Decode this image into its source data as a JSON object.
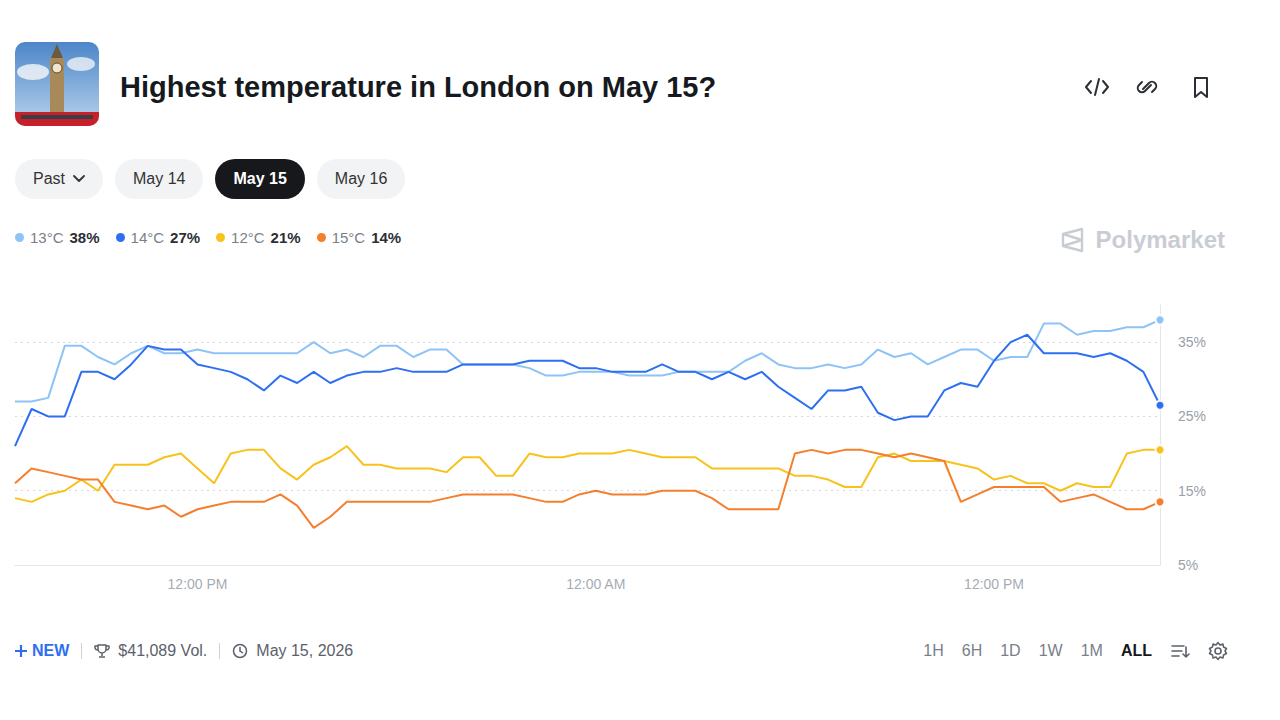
{
  "header": {
    "title": "Highest temperature in London on May 15?",
    "tabs": [
      "Past",
      "May 14",
      "May 15",
      "May 16"
    ],
    "active_tab": "May 15",
    "watermark": "Polymarket"
  },
  "chart_data": {
    "type": "line",
    "x": [
      6.5,
      7,
      7.5,
      8,
      8.5,
      9,
      9.5,
      10,
      10.5,
      11,
      11.5,
      12,
      12.5,
      13,
      13.5,
      14,
      14.5,
      15,
      15.5,
      16,
      16.5,
      17,
      17.5,
      18,
      18.5,
      19,
      19.5,
      20,
      20.5,
      21,
      21.5,
      22,
      22.5,
      23,
      23.5,
      24,
      24.5,
      25,
      25.5,
      26,
      26.5,
      27,
      27.5,
      28,
      28.5,
      29,
      29.5,
      30,
      30.5,
      31,
      31.5,
      32,
      32.5,
      33,
      33.5,
      34,
      34.5,
      35,
      35.5,
      36,
      36.5,
      37,
      37.5,
      38,
      38.5,
      39,
      39.5,
      40,
      40.5,
      41
    ],
    "xlim": [
      6.5,
      41
    ],
    "xticks": [
      {
        "value": 12,
        "label": "12:00 PM"
      },
      {
        "value": 24,
        "label": "12:00 AM"
      },
      {
        "value": 36,
        "label": "12:00 PM"
      }
    ],
    "ylim": [
      5,
      40
    ],
    "yticks": [
      {
        "value": 5,
        "label": "5%"
      },
      {
        "value": 15,
        "label": "15%"
      },
      {
        "value": 25,
        "label": "25%"
      },
      {
        "value": 35,
        "label": "35%"
      }
    ],
    "grid": true,
    "legend": "top-left",
    "series": [
      {
        "name": "13°C",
        "color": "#8ec3f7",
        "chance": {
          "value": 38,
          "label": "38%"
        },
        "values": [
          27,
          27,
          27.5,
          34.5,
          34.5,
          33,
          32,
          33.5,
          34.5,
          33.5,
          33.5,
          34,
          33.5,
          33.5,
          33.5,
          33.5,
          33.5,
          33.5,
          35,
          33.5,
          34,
          33,
          34.5,
          34.5,
          33,
          34,
          34,
          32,
          32,
          32,
          32,
          31.5,
          30.5,
          30.5,
          31,
          31,
          31,
          30.5,
          30.5,
          30.5,
          31,
          31,
          31,
          31,
          32.5,
          33.5,
          32,
          31.5,
          31.5,
          32,
          31.5,
          32,
          34,
          33,
          33.5,
          32,
          33,
          34,
          34,
          32.5,
          33,
          33,
          37.5,
          37.5,
          36,
          36.5,
          36.5,
          37,
          37,
          38
        ]
      },
      {
        "name": "14°C",
        "color": "#2e6ff2",
        "chance": {
          "value": 27,
          "label": "27%"
        },
        "values": [
          21,
          26,
          25,
          25,
          31,
          31,
          30,
          32,
          34.5,
          34,
          34,
          32,
          31.5,
          31,
          30,
          28.5,
          30.5,
          29.5,
          31,
          29.5,
          30.5,
          31,
          31,
          31.5,
          31,
          31,
          31,
          32,
          32,
          32,
          32,
          32.5,
          32.5,
          32.5,
          31.5,
          31.5,
          31,
          31,
          31,
          32,
          31,
          31,
          30,
          31,
          30,
          31,
          29,
          27.5,
          26,
          28.5,
          28.5,
          29,
          25.5,
          24.5,
          25,
          25,
          28.5,
          29.5,
          29,
          32.5,
          35,
          36,
          33.5,
          33.5,
          33.5,
          33,
          33.5,
          32.5,
          31,
          26.5
        ]
      },
      {
        "name": "12°C",
        "color": "#f8c21c",
        "chance": {
          "value": 21,
          "label": "21%"
        },
        "values": [
          14,
          13.5,
          14.5,
          15,
          16.5,
          15,
          18.5,
          18.5,
          18.5,
          19.5,
          20,
          18,
          16,
          20,
          20.5,
          20.5,
          18,
          16.5,
          18.5,
          19.5,
          21,
          18.5,
          18.5,
          18,
          18,
          18,
          17.5,
          19.5,
          19.5,
          17,
          17,
          20,
          19.5,
          19.5,
          20,
          20,
          20,
          20.5,
          20,
          19.5,
          19.5,
          19.5,
          18,
          18,
          18,
          18,
          18,
          17,
          17,
          16.5,
          15.5,
          15.5,
          19.5,
          20,
          19,
          19,
          19,
          18.5,
          18,
          16.5,
          17,
          16,
          16,
          15,
          16,
          15.5,
          15.5,
          20,
          20.5,
          20.5
        ]
      },
      {
        "name": "15°C",
        "color": "#f47f2c",
        "chance": {
          "value": 14,
          "label": "14%"
        },
        "values": [
          16,
          18,
          17.5,
          17,
          16.5,
          16.5,
          13.5,
          13,
          12.5,
          13,
          11.5,
          12.5,
          13,
          13.5,
          13.5,
          13.5,
          14.5,
          13,
          10,
          11.5,
          13.5,
          13.5,
          13.5,
          13.5,
          13.5,
          13.5,
          14,
          14.5,
          14.5,
          14.5,
          14.5,
          14,
          13.5,
          13.5,
          14.5,
          15,
          14.5,
          14.5,
          14.5,
          15,
          15,
          15,
          14,
          12.5,
          12.5,
          12.5,
          12.5,
          20,
          20.5,
          20,
          20.5,
          20.5,
          20,
          19.5,
          20,
          19.5,
          19,
          13.5,
          14.5,
          15.5,
          15.5,
          15.5,
          15.5,
          13.5,
          14,
          14.5,
          13.5,
          12.5,
          12.5,
          13.5
        ]
      }
    ]
  },
  "footer": {
    "badge": "NEW",
    "volume": "$41,089 Vol.",
    "date": "May 15, 2026",
    "ranges": [
      "1H",
      "6H",
      "1D",
      "1W",
      "1M",
      "ALL"
    ],
    "active_range": "ALL"
  }
}
